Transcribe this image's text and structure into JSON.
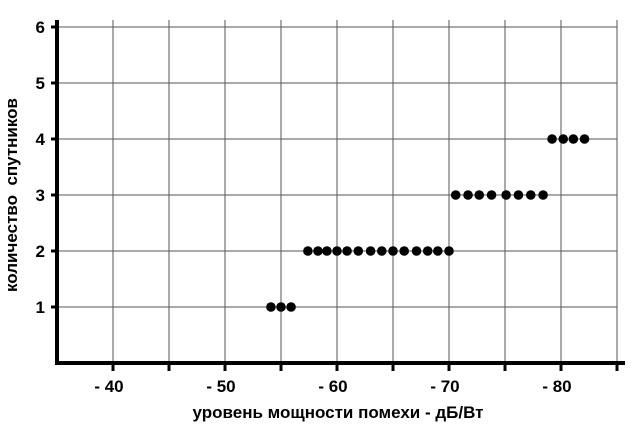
{
  "chart_data": {
    "type": "scatter",
    "title": "",
    "xlabel": "уровень мощности помехи  -  дБ/Вт",
    "ylabel": "количество  спутников",
    "xlim": [
      -35,
      -85
    ],
    "ylim": [
      0,
      6
    ],
    "x_ticks": [
      -40,
      -50,
      -60,
      -70,
      -80
    ],
    "x_tick_labels": [
      "- 40",
      "- 50",
      "- 60",
      "- 70",
      "- 80"
    ],
    "y_ticks": [
      1,
      2,
      3,
      4,
      5,
      6
    ],
    "y_tick_labels": [
      "1",
      "2",
      "3",
      "4",
      "5",
      "6"
    ],
    "grid": true,
    "marker_color": "#000000",
    "points": [
      {
        "x": -54.1,
        "y": 1
      },
      {
        "x": -55.0,
        "y": 1
      },
      {
        "x": -55.9,
        "y": 1
      },
      {
        "x": -57.4,
        "y": 2
      },
      {
        "x": -58.3,
        "y": 2
      },
      {
        "x": -59.1,
        "y": 2
      },
      {
        "x": -60.0,
        "y": 2
      },
      {
        "x": -60.9,
        "y": 2
      },
      {
        "x": -61.9,
        "y": 2
      },
      {
        "x": -63.0,
        "y": 2
      },
      {
        "x": -64.0,
        "y": 2
      },
      {
        "x": -65.0,
        "y": 2
      },
      {
        "x": -66.0,
        "y": 2
      },
      {
        "x": -67.1,
        "y": 2
      },
      {
        "x": -68.1,
        "y": 2
      },
      {
        "x": -69.0,
        "y": 2
      },
      {
        "x": -70.0,
        "y": 2
      },
      {
        "x": -70.6,
        "y": 3
      },
      {
        "x": -71.7,
        "y": 3
      },
      {
        "x": -72.7,
        "y": 3
      },
      {
        "x": -73.8,
        "y": 3
      },
      {
        "x": -75.1,
        "y": 3
      },
      {
        "x": -76.2,
        "y": 3
      },
      {
        "x": -77.3,
        "y": 3
      },
      {
        "x": -78.4,
        "y": 3
      },
      {
        "x": -79.2,
        "y": 4
      },
      {
        "x": -80.2,
        "y": 4
      },
      {
        "x": -81.1,
        "y": 4
      },
      {
        "x": -82.1,
        "y": 4
      }
    ]
  }
}
